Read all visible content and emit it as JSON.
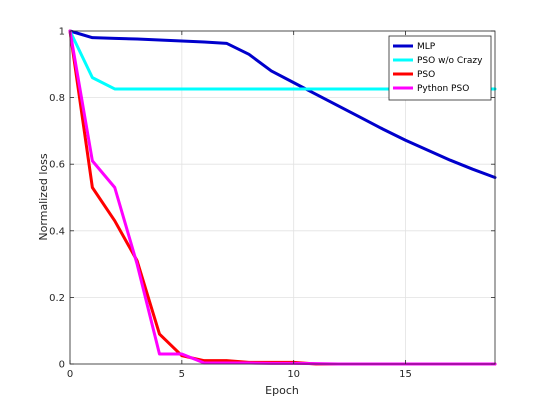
{
  "chart_data": {
    "type": "line",
    "title": "",
    "xlabel": "Epoch",
    "ylabel": "Normalized loss",
    "xlim": [
      0,
      19
    ],
    "ylim": [
      0,
      1
    ],
    "xticks": [
      0,
      5,
      10,
      15
    ],
    "yticks": [
      0,
      0.2,
      0.4,
      0.6,
      0.8,
      1
    ],
    "xtick_labels": [
      "0",
      "5",
      "10",
      "15"
    ],
    "ytick_labels": [
      "0",
      "0.2",
      "0.4",
      "0.6",
      "0.8",
      "1"
    ],
    "grid": true,
    "legend_position": "top-right",
    "series": [
      {
        "name": "MLP",
        "color": "#0000cc",
        "x": [
          0,
          1,
          2,
          3,
          4,
          5,
          6,
          7,
          8,
          9,
          10,
          11,
          12,
          13,
          14,
          15,
          16,
          17,
          18,
          19
        ],
        "y": [
          1.0,
          0.98,
          0.978,
          0.976,
          0.973,
          0.97,
          0.967,
          0.963,
          0.93,
          0.88,
          0.845,
          0.81,
          0.775,
          0.74,
          0.705,
          0.672,
          0.642,
          0.612,
          0.585,
          0.56
        ]
      },
      {
        "name": "PSO w/o Crazy",
        "color": "#00ffff",
        "x": [
          0,
          1,
          2,
          3,
          4,
          5,
          6,
          7,
          8,
          9,
          10,
          11,
          12,
          13,
          14,
          15,
          16,
          17,
          18,
          19
        ],
        "y": [
          1.0,
          0.86,
          0.826,
          0.826,
          0.826,
          0.826,
          0.826,
          0.826,
          0.826,
          0.826,
          0.826,
          0.826,
          0.826,
          0.826,
          0.826,
          0.826,
          0.826,
          0.826,
          0.826,
          0.826
        ]
      },
      {
        "name": "PSO",
        "color": "#ff0000",
        "x": [
          0,
          1,
          2,
          3,
          4,
          5,
          6,
          7,
          8,
          9,
          10,
          11,
          12,
          13,
          14,
          15,
          16,
          17,
          18,
          19
        ],
        "y": [
          1.0,
          0.53,
          0.43,
          0.31,
          0.09,
          0.025,
          0.01,
          0.01,
          0.005,
          0.005,
          0.005,
          0.0,
          0.0,
          0.0,
          0.0,
          0.0,
          0.0,
          0.0,
          0.0,
          0.0
        ]
      },
      {
        "name": "Python PSO",
        "color": "#ff00ff",
        "x": [
          0,
          1,
          2,
          3,
          4,
          5,
          6,
          7,
          8,
          9,
          10,
          11,
          12,
          13,
          14,
          15,
          16,
          17,
          18,
          19
        ],
        "y": [
          1.0,
          0.61,
          0.53,
          0.3,
          0.03,
          0.03,
          0.003,
          0.003,
          0.003,
          0.002,
          0.002,
          0.001,
          0.0,
          0.0,
          0.0,
          0.0,
          0.0,
          0.0,
          0.0,
          0.0
        ]
      }
    ]
  }
}
